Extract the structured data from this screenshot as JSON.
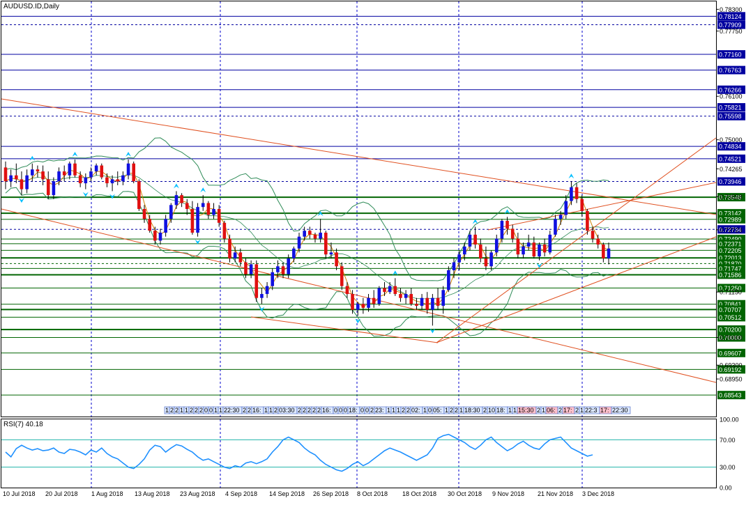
{
  "window": {
    "title": "AUDUSD.ID,Daily",
    "rsi_label": "RSI(7) 40.18"
  },
  "colors": {
    "background": "#ffffff",
    "frame": "#000000",
    "bull": "#1010e0",
    "bear": "#e01010",
    "res_line": "#0000a0",
    "sup_line": "#006400",
    "trend": "#e05020",
    "bands": "#2e8b57",
    "ma": "#d08000",
    "rsi": "#1e90ff",
    "arrow": "#00bfff",
    "grid": "#0000cd"
  },
  "chart_data": [
    {
      "type": "candlestick",
      "symbol": "AUDUSD.ID",
      "timeframe": "Daily",
      "x_labels": [
        "10 Jul 2018",
        "20 Jul 2018",
        "1 Aug 2018",
        "13 Aug 2018",
        "23 Aug 2018",
        "4 Sep 2018",
        "14 Sep 2018",
        "26 Sep 2018",
        "8 Oct 2018",
        "18 Oct 2018",
        "30 Oct 2018",
        "9 Nov 2018",
        "21 Nov 2018",
        "3 Dec 2018"
      ],
      "ylim": [
        0.68,
        0.785
      ],
      "y_ticks": [
        "0.78300",
        "0.77750",
        "0.76100",
        "0.75000",
        "0.74265",
        "0.73558",
        "0.72723",
        "0.71150",
        "0.70000",
        "0.69300",
        "0.68950"
      ],
      "price_labels": [
        {
          "value": "0.78124",
          "kind": "res"
        },
        {
          "value": "0.77909",
          "kind": "res"
        },
        {
          "value": "0.77160",
          "kind": "res"
        },
        {
          "value": "0.76763",
          "kind": "res"
        },
        {
          "value": "0.76266",
          "kind": "res"
        },
        {
          "value": "0.75821",
          "kind": "res"
        },
        {
          "value": "0.75598",
          "kind": "res"
        },
        {
          "value": "0.74834",
          "kind": "res"
        },
        {
          "value": "0.74521",
          "kind": "res"
        },
        {
          "value": "0.73946",
          "kind": "res"
        },
        {
          "value": "0.73548",
          "kind": "sup"
        },
        {
          "value": "0.73142",
          "kind": "sup"
        },
        {
          "value": "0.72989",
          "kind": "sup"
        },
        {
          "value": "0.72734",
          "kind": "res"
        },
        {
          "value": "0.72490",
          "kind": "sup"
        },
        {
          "value": "0.72371",
          "kind": "sup"
        },
        {
          "value": "0.72205",
          "kind": "sup"
        },
        {
          "value": "0.72013",
          "kind": "sup"
        },
        {
          "value": "0.71870",
          "kind": "sup"
        },
        {
          "value": "0.71747",
          "kind": "sup"
        },
        {
          "value": "0.71586",
          "kind": "sup"
        },
        {
          "value": "0.71250",
          "kind": "sup"
        },
        {
          "value": "0.70841",
          "kind": "sup"
        },
        {
          "value": "0.70707",
          "kind": "sup"
        },
        {
          "value": "0.70512",
          "kind": "sup"
        },
        {
          "value": "0.70200",
          "kind": "sup"
        },
        {
          "value": "0.70000",
          "kind": "sup"
        },
        {
          "value": "0.69607",
          "kind": "sup"
        },
        {
          "value": "0.69192",
          "kind": "sup"
        },
        {
          "value": "0.68543",
          "kind": "sup"
        }
      ],
      "ohlc": [
        [
          0.743,
          0.7445,
          0.7375,
          0.7395
        ],
        [
          0.7395,
          0.7425,
          0.738,
          0.741
        ],
        [
          0.741,
          0.744,
          0.739,
          0.74
        ],
        [
          0.74,
          0.742,
          0.736,
          0.7375
        ],
        [
          0.7375,
          0.7425,
          0.7365,
          0.741
        ],
        [
          0.741,
          0.744,
          0.7395,
          0.7425
        ],
        [
          0.7425,
          0.7435,
          0.7405,
          0.742
        ],
        [
          0.742,
          0.7435,
          0.7385,
          0.74
        ],
        [
          0.74,
          0.742,
          0.735,
          0.736
        ],
        [
          0.736,
          0.7405,
          0.735,
          0.7395
        ],
        [
          0.7395,
          0.743,
          0.7385,
          0.742
        ],
        [
          0.742,
          0.7435,
          0.7395,
          0.741
        ],
        [
          0.741,
          0.7445,
          0.74,
          0.744
        ],
        [
          0.744,
          0.745,
          0.7405,
          0.741
        ],
        [
          0.741,
          0.742,
          0.738,
          0.739
        ],
        [
          0.739,
          0.7415,
          0.7375,
          0.7405
        ],
        [
          0.7405,
          0.743,
          0.7395,
          0.742
        ],
        [
          0.742,
          0.744,
          0.741,
          0.7435
        ],
        [
          0.7435,
          0.744,
          0.74,
          0.7405
        ],
        [
          0.7405,
          0.7415,
          0.738,
          0.739
        ],
        [
          0.739,
          0.741,
          0.737,
          0.74
        ],
        [
          0.74,
          0.742,
          0.7385,
          0.7395
        ],
        [
          0.7395,
          0.742,
          0.7385,
          0.741
        ],
        [
          0.741,
          0.745,
          0.74,
          0.744
        ],
        [
          0.744,
          0.7445,
          0.739,
          0.7395
        ],
        [
          0.7395,
          0.74,
          0.732,
          0.7325
        ],
        [
          0.7325,
          0.7335,
          0.729,
          0.73
        ],
        [
          0.73,
          0.731,
          0.7265,
          0.727
        ],
        [
          0.727,
          0.728,
          0.7235,
          0.7245
        ],
        [
          0.7245,
          0.7275,
          0.7235,
          0.7265
        ],
        [
          0.7265,
          0.731,
          0.7255,
          0.73
        ],
        [
          0.73,
          0.734,
          0.729,
          0.7335
        ],
        [
          0.7335,
          0.737,
          0.7325,
          0.736
        ],
        [
          0.736,
          0.7365,
          0.733,
          0.734
        ],
        [
          0.734,
          0.735,
          0.731,
          0.7325
        ],
        [
          0.7325,
          0.7345,
          0.726,
          0.7265
        ],
        [
          0.7265,
          0.734,
          0.7255,
          0.733
        ],
        [
          0.733,
          0.736,
          0.732,
          0.734
        ],
        [
          0.734,
          0.7345,
          0.73,
          0.731
        ],
        [
          0.731,
          0.734,
          0.73,
          0.7325
        ],
        [
          0.7325,
          0.7335,
          0.728,
          0.729
        ],
        [
          0.729,
          0.7295,
          0.724,
          0.725
        ],
        [
          0.725,
          0.726,
          0.719,
          0.72
        ],
        [
          0.72,
          0.723,
          0.719,
          0.7215
        ],
        [
          0.7215,
          0.7225,
          0.718,
          0.719
        ],
        [
          0.719,
          0.72,
          0.715,
          0.716
        ],
        [
          0.716,
          0.7195,
          0.715,
          0.7185
        ],
        [
          0.7185,
          0.7195,
          0.709,
          0.71
        ],
        [
          0.71,
          0.7125,
          0.7085,
          0.711
        ],
        [
          0.711,
          0.714,
          0.71,
          0.713
        ],
        [
          0.713,
          0.7175,
          0.712,
          0.7165
        ],
        [
          0.7165,
          0.7195,
          0.715,
          0.718
        ],
        [
          0.718,
          0.719,
          0.715,
          0.716
        ],
        [
          0.716,
          0.721,
          0.715,
          0.72
        ],
        [
          0.72,
          0.723,
          0.719,
          0.7225
        ],
        [
          0.7225,
          0.7265,
          0.7215,
          0.7255
        ],
        [
          0.7255,
          0.728,
          0.7245,
          0.727
        ],
        [
          0.727,
          0.728,
          0.725,
          0.726
        ],
        [
          0.726,
          0.7265,
          0.724,
          0.725
        ],
        [
          0.725,
          0.73,
          0.724,
          0.7265
        ],
        [
          0.7265,
          0.727,
          0.72,
          0.721
        ],
        [
          0.721,
          0.724,
          0.72,
          0.7215
        ],
        [
          0.7215,
          0.7225,
          0.717,
          0.718
        ],
        [
          0.718,
          0.719,
          0.712,
          0.713
        ],
        [
          0.713,
          0.714,
          0.71,
          0.711
        ],
        [
          0.711,
          0.712,
          0.706,
          0.707
        ],
        [
          0.707,
          0.709,
          0.7055,
          0.7085
        ],
        [
          0.7085,
          0.71,
          0.706,
          0.7075
        ],
        [
          0.7075,
          0.711,
          0.7065,
          0.71
        ],
        [
          0.71,
          0.712,
          0.7075,
          0.7085
        ],
        [
          0.7085,
          0.713,
          0.708,
          0.7125
        ],
        [
          0.7125,
          0.714,
          0.7105,
          0.7115
        ],
        [
          0.7115,
          0.714,
          0.711,
          0.713
        ],
        [
          0.713,
          0.715,
          0.7105,
          0.711
        ],
        [
          0.711,
          0.7125,
          0.709,
          0.71
        ],
        [
          0.71,
          0.712,
          0.7085,
          0.711
        ],
        [
          0.711,
          0.7125,
          0.708,
          0.7085
        ],
        [
          0.7085,
          0.71,
          0.707,
          0.708
        ],
        [
          0.708,
          0.711,
          0.707,
          0.71
        ],
        [
          0.71,
          0.7115,
          0.706,
          0.707
        ],
        [
          0.707,
          0.711,
          0.703,
          0.71
        ],
        [
          0.71,
          0.7125,
          0.707,
          0.708
        ],
        [
          0.708,
          0.713,
          0.706,
          0.712
        ],
        [
          0.712,
          0.718,
          0.7115,
          0.717
        ],
        [
          0.717,
          0.72,
          0.715,
          0.719
        ],
        [
          0.719,
          0.722,
          0.717,
          0.721
        ],
        [
          0.721,
          0.724,
          0.7195,
          0.723
        ],
        [
          0.723,
          0.727,
          0.722,
          0.726
        ],
        [
          0.726,
          0.728,
          0.7225,
          0.7235
        ],
        [
          0.7235,
          0.725,
          0.719,
          0.72
        ],
        [
          0.72,
          0.723,
          0.717,
          0.718
        ],
        [
          0.718,
          0.722,
          0.717,
          0.7215
        ],
        [
          0.7215,
          0.726,
          0.7205,
          0.725
        ],
        [
          0.725,
          0.73,
          0.724,
          0.7295
        ],
        [
          0.7295,
          0.7305,
          0.726,
          0.7275
        ],
        [
          0.7275,
          0.7285,
          0.724,
          0.725
        ],
        [
          0.725,
          0.7265,
          0.72,
          0.721
        ],
        [
          0.721,
          0.724,
          0.72,
          0.723
        ],
        [
          0.723,
          0.726,
          0.722,
          0.724
        ],
        [
          0.724,
          0.7255,
          0.72,
          0.7205
        ],
        [
          0.7205,
          0.724,
          0.7195,
          0.7235
        ],
        [
          0.7235,
          0.725,
          0.7205,
          0.7215
        ],
        [
          0.7215,
          0.727,
          0.721,
          0.726
        ],
        [
          0.726,
          0.731,
          0.7255,
          0.73
        ],
        [
          0.73,
          0.732,
          0.7285,
          0.731
        ],
        [
          0.731,
          0.736,
          0.73,
          0.7345
        ],
        [
          0.7345,
          0.7395,
          0.7335,
          0.738
        ],
        [
          0.738,
          0.739,
          0.734,
          0.735
        ],
        [
          0.735,
          0.736,
          0.7305,
          0.732
        ],
        [
          0.732,
          0.7325,
          0.726,
          0.727
        ],
        [
          0.727,
          0.728,
          0.724,
          0.725
        ],
        [
          0.725,
          0.726,
          0.7225,
          0.7235
        ],
        [
          0.7235,
          0.724,
          0.719,
          0.72
        ],
        [
          0.72,
          0.724,
          0.7185,
          0.7225
        ]
      ],
      "date_boxes": [
        "1",
        "2",
        "2",
        "1",
        "1",
        "2",
        "2",
        "2",
        "0",
        "0",
        "1",
        "1",
        "22:30",
        "2",
        "2",
        "16:",
        "1",
        "1",
        "2",
        "03:30",
        "2",
        "2",
        "2",
        "2",
        "2",
        "16:",
        "0",
        "0",
        "0",
        "18:",
        "0",
        "0",
        "2",
        "23:",
        "1",
        "1",
        "1",
        "2",
        "2",
        "02:",
        "1",
        "0",
        "05:",
        "1",
        "2",
        "2",
        "1",
        "18:30",
        "2",
        "10",
        "18:",
        "1",
        "1",
        "15:30",
        "2",
        "1",
        "06:",
        "2",
        "17:",
        "2",
        "1",
        "22:3",
        "17:",
        "22:30"
      ],
      "type_overlays": [
        "bollinger",
        "moving-average",
        "trendlines",
        "horizontal-levels",
        "fractal-arrows"
      ]
    },
    {
      "type": "line",
      "title": "RSI(7) 40.18",
      "ylim": [
        0,
        100
      ],
      "y_ticks": [
        "100.00",
        "70.00",
        "30.00",
        "0.00"
      ],
      "levels": [
        70,
        30
      ],
      "values": [
        52,
        45,
        57,
        62,
        58,
        55,
        57,
        54,
        55,
        58,
        52,
        50,
        56,
        55,
        52,
        48,
        55,
        52,
        58,
        50,
        45,
        42,
        36,
        30,
        28,
        34,
        42,
        55,
        62,
        60,
        52,
        58,
        63,
        61,
        56,
        52,
        45,
        40,
        42,
        38,
        34,
        30,
        28,
        32,
        30,
        36,
        38,
        35,
        38,
        42,
        52,
        60,
        70,
        74,
        70,
        66,
        58,
        52,
        48,
        40,
        34,
        30,
        26,
        24,
        28,
        34,
        38,
        32,
        36,
        42,
        48,
        54,
        58,
        55,
        52,
        48,
        44,
        40,
        44,
        48,
        58,
        72,
        76,
        78,
        74,
        70,
        66,
        60,
        56,
        62,
        70,
        74,
        66,
        60,
        54,
        58,
        64,
        68,
        62,
        58,
        56,
        64,
        70,
        72,
        74,
        66,
        58,
        54,
        50,
        46,
        48
      ]
    }
  ]
}
